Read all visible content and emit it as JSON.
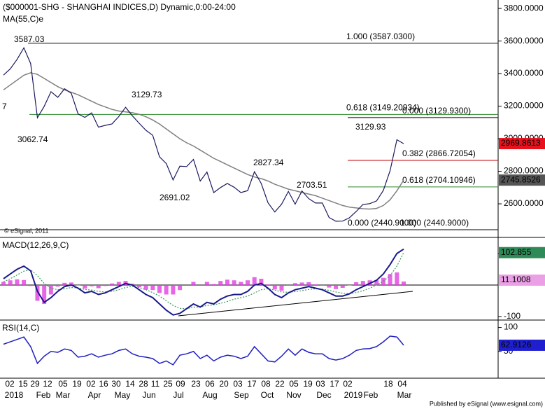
{
  "header": {
    "edge_label": "7",
    "copyright": "© eSignal, 2011",
    "footer": "Published by eSignal (www.esignal.com)"
  },
  "x_axis": {
    "days": [
      "02",
      "15",
      "29",
      "12",
      "05",
      "19",
      "02",
      "16",
      "30",
      "14",
      "28",
      "11",
      "25",
      "09",
      "23",
      "06",
      "20",
      "03",
      "17",
      "08",
      "22",
      "05",
      "19",
      "03",
      "17",
      "02",
      "18",
      "04"
    ],
    "months": [
      "2018",
      "Feb",
      "Mar",
      "Apr",
      "May",
      "Jun",
      "Jul",
      "Aug",
      "Sep",
      "Oct",
      "Nov",
      "Dec",
      "2019",
      "Feb",
      "Mar"
    ]
  },
  "chart_data": [
    {
      "type": "line",
      "title": "($000001-SHG - SHANGHAI INDICES,D) Dynamic,0:00-24:00",
      "series": [
        {
          "color": "#1a1a5e",
          "values": [
            3391,
            3429,
            3487,
            3558,
            3462,
            3129,
            3199,
            3289,
            3254,
            3307,
            3279,
            3152,
            3131,
            3159,
            3071,
            3082,
            3091,
            3136,
            3193,
            3141,
            3095,
            3052,
            3021,
            2889,
            2847,
            2747,
            2831,
            2829,
            2873,
            2740,
            2795,
            2669,
            2700,
            2725,
            2702,
            2669,
            2681,
            2797,
            2725,
            2606,
            2550,
            2598,
            2676,
            2598,
            2679,
            2632,
            2605,
            2605,
            2516,
            2493,
            2494,
            2514,
            2553,
            2596,
            2601,
            2618,
            2682,
            2804,
            2994,
            2969.8613
          ]
        },
        {
          "name": "MA(55,C)e",
          "color": "#808080",
          "values": [
            3300,
            3330,
            3360,
            3390,
            3405,
            3395,
            3370,
            3345,
            3320,
            3300,
            3285,
            3270,
            3250,
            3230,
            3210,
            3195,
            3180,
            3170,
            3165,
            3160,
            3150,
            3135,
            3115,
            3090,
            3060,
            3030,
            3000,
            2975,
            2955,
            2930,
            2905,
            2880,
            2860,
            2840,
            2820,
            2800,
            2780,
            2765,
            2755,
            2740,
            2720,
            2705,
            2690,
            2680,
            2670,
            2660,
            2650,
            2635,
            2620,
            2605,
            2590,
            2580,
            2575,
            2570,
            2568,
            2572,
            2590,
            2625,
            2680,
            2745.8526
          ]
        }
      ],
      "ylim": [
        2398,
        3852
      ],
      "yticks": [
        {
          "value": 2600,
          "label": "2600.0000"
        },
        {
          "value": 2800,
          "label": "2800.0000"
        },
        {
          "value": 3000,
          "label": "3000.0000"
        },
        {
          "value": 3200,
          "label": "3200.0000"
        },
        {
          "value": 3400,
          "label": "3400.0000"
        },
        {
          "value": 3600,
          "label": "3600.0000"
        },
        {
          "value": 3800,
          "label": "3800.0000"
        }
      ],
      "annotations": [
        "3587.03",
        "3062.74",
        "3129.73",
        "2691.02",
        "2827.34",
        "2703.51",
        "3129.93"
      ],
      "fib_levels": [
        {
          "value": 3587.03,
          "label": "1.000 (3587.0300)",
          "color": "#000000"
        },
        {
          "value": 3149.20934,
          "label": "0.618 (3149.20934)",
          "color": "#2e8b2e"
        },
        {
          "value": 3129.93,
          "label": "0.000 (3129.9300)",
          "color": "#000000"
        },
        {
          "value": 2866.72054,
          "label": "0.382 (2866.72054)",
          "color": "#c00000"
        },
        {
          "value": 2704.10946,
          "label": "0.618 (2704.10946)",
          "color": "#2e8b2e"
        },
        {
          "value": 2440.9,
          "label": "0.000 (2440.9000)",
          "color": "#000000"
        },
        {
          "value": 2440.9,
          "label": "1.000 (2440.9000)",
          "color": "#000000"
        }
      ],
      "last_colors": [
        "#e8121e",
        "#555555"
      ]
    },
    {
      "type": "macd",
      "title": "MACD(12,26,9,C)",
      "series": [
        {
          "color": "#1a1a8c",
          "values": [
            20,
            35,
            50,
            60,
            45,
            -20,
            -55,
            -40,
            -20,
            -5,
            0,
            -10,
            -25,
            -20,
            -30,
            -25,
            -15,
            -5,
            5,
            0,
            -15,
            -30,
            -40,
            -60,
            -80,
            -95,
            -90,
            -75,
            -60,
            -70,
            -55,
            -60,
            -45,
            -35,
            -30,
            -30,
            -20,
            0,
            5,
            -10,
            -30,
            -40,
            -25,
            -15,
            -10,
            -5,
            -10,
            -15,
            -25,
            -35,
            -35,
            -28,
            -15,
            -5,
            5,
            15,
            35,
            65,
            100,
            113.9558
          ]
        },
        {
          "color": "#3a9a5a",
          "values": [
            10,
            20,
            32,
            44,
            48,
            30,
            5,
            -10,
            -15,
            -12,
            -8,
            -9,
            -14,
            -16,
            -20,
            -22,
            -20,
            -15,
            -8,
            -4,
            -8,
            -15,
            -24,
            -35,
            -50,
            -65,
            -74,
            -75,
            -70,
            -70,
            -65,
            -63,
            -58,
            -52,
            -45,
            -40,
            -35,
            -25,
            -15,
            -12,
            -16,
            -22,
            -23,
            -21,
            -18,
            -14,
            -12,
            -13,
            -17,
            -22,
            -26,
            -27,
            -24,
            -18,
            -10,
            0,
            12,
            30,
            60,
            102.855
          ]
        },
        {
          "color": "#e040e0",
          "values": [
            10,
            15,
            18,
            16,
            -3,
            -50,
            -60,
            -30,
            -5,
            7,
            8,
            -1,
            -11,
            -4,
            -10,
            -3,
            5,
            10,
            13,
            4,
            -7,
            -15,
            -16,
            -25,
            -30,
            -30,
            -16,
            0,
            10,
            0,
            10,
            3,
            13,
            17,
            15,
            10,
            15,
            25,
            20,
            2,
            -14,
            -18,
            -2,
            6,
            8,
            9,
            2,
            -2,
            -8,
            -13,
            -9,
            -1,
            9,
            13,
            15,
            15,
            23,
            35,
            40,
            11.1008
          ]
        }
      ],
      "ylim": [
        -106.7,
        148.9
      ],
      "yticks": [
        -100,
        100
      ],
      "last_colors": [
        "#2e8b57",
        "#eba0e6"
      ]
    },
    {
      "type": "rsi",
      "title": "RSI(14,C)",
      "series": [
        {
          "color": "#2020c0",
          "values": [
            65,
            70,
            75,
            80,
            60,
            25,
            40,
            50,
            48,
            55,
            52,
            38,
            40,
            45,
            38,
            42,
            45,
            52,
            55,
            45,
            40,
            38,
            35,
            25,
            30,
            22,
            42,
            45,
            50,
            35,
            42,
            30,
            38,
            42,
            40,
            35,
            40,
            60,
            45,
            30,
            28,
            40,
            55,
            42,
            55,
            48,
            45,
            45,
            35,
            32,
            35,
            42,
            52,
            55,
            56,
            60,
            70,
            82,
            80,
            62.9126
          ]
        }
      ],
      "ylim": [
        -3,
        114
      ],
      "yticks": [
        50,
        100
      ],
      "last_colors": [
        "#1f1fd0"
      ]
    }
  ]
}
